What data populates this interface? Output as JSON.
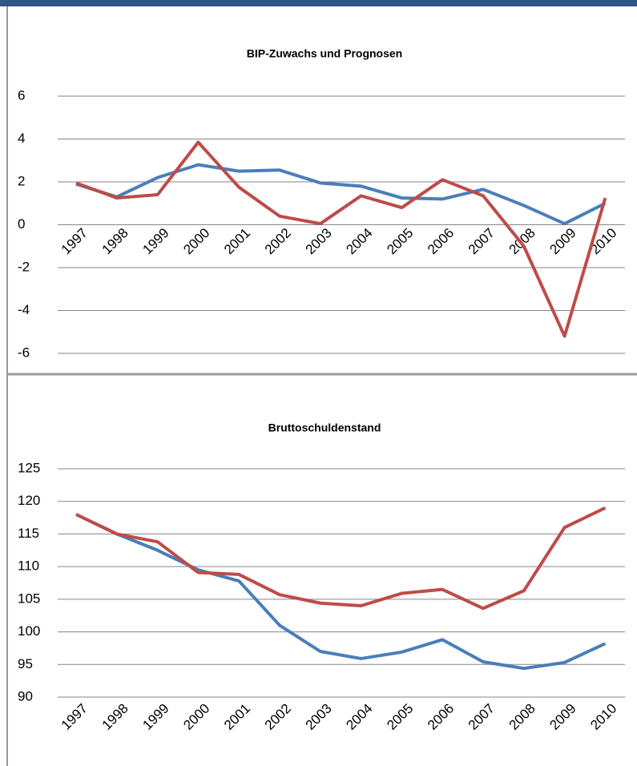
{
  "chart_data": [
    {
      "type": "line",
      "title": "BIP-Zuwachs und Prognosen",
      "categories": [
        "1997",
        "1998",
        "1999",
        "2000",
        "2001",
        "2002",
        "2003",
        "2004",
        "2005",
        "2006",
        "2007",
        "2008",
        "2009",
        "2010"
      ],
      "series": [
        {
          "color": "#4a7ebb",
          "values": [
            1.9,
            1.3,
            2.2,
            2.8,
            2.5,
            2.55,
            1.95,
            1.8,
            1.25,
            1.2,
            1.65,
            0.9,
            0.05,
            1.0
          ]
        },
        {
          "color": "#be4b48",
          "values": [
            1.95,
            1.25,
            1.4,
            3.85,
            1.75,
            0.4,
            0.05,
            1.35,
            0.8,
            2.1,
            1.35,
            -1.0,
            -5.2,
            1.25
          ]
        }
      ],
      "ylim": [
        -6,
        6
      ],
      "yticks": [
        -6,
        -4,
        -2,
        0,
        2,
        4,
        6
      ],
      "grid": true
    },
    {
      "type": "line",
      "title": "Bruttoschuldenstand",
      "categories": [
        "1997",
        "1998",
        "1999",
        "2000",
        "2001",
        "2002",
        "2003",
        "2004",
        "2005",
        "2006",
        "2007",
        "2008",
        "2009",
        "2010"
      ],
      "series": [
        {
          "color": "#4a7ebb",
          "values": [
            118,
            115,
            112.5,
            109.5,
            107.8,
            101,
            97,
            95.9,
            96.9,
            98.8,
            95.4,
            94.4,
            95.3,
            98.2
          ]
        },
        {
          "color": "#be4b48",
          "values": [
            118,
            115,
            113.8,
            109.1,
            108.8,
            105.7,
            104.4,
            104,
            105.9,
            106.5,
            103.6,
            106.3,
            116,
            119
          ]
        }
      ],
      "ylim": [
        90,
        125
      ],
      "yticks": [
        90,
        95,
        100,
        105,
        110,
        115,
        120,
        125
      ],
      "grid": true
    }
  ]
}
